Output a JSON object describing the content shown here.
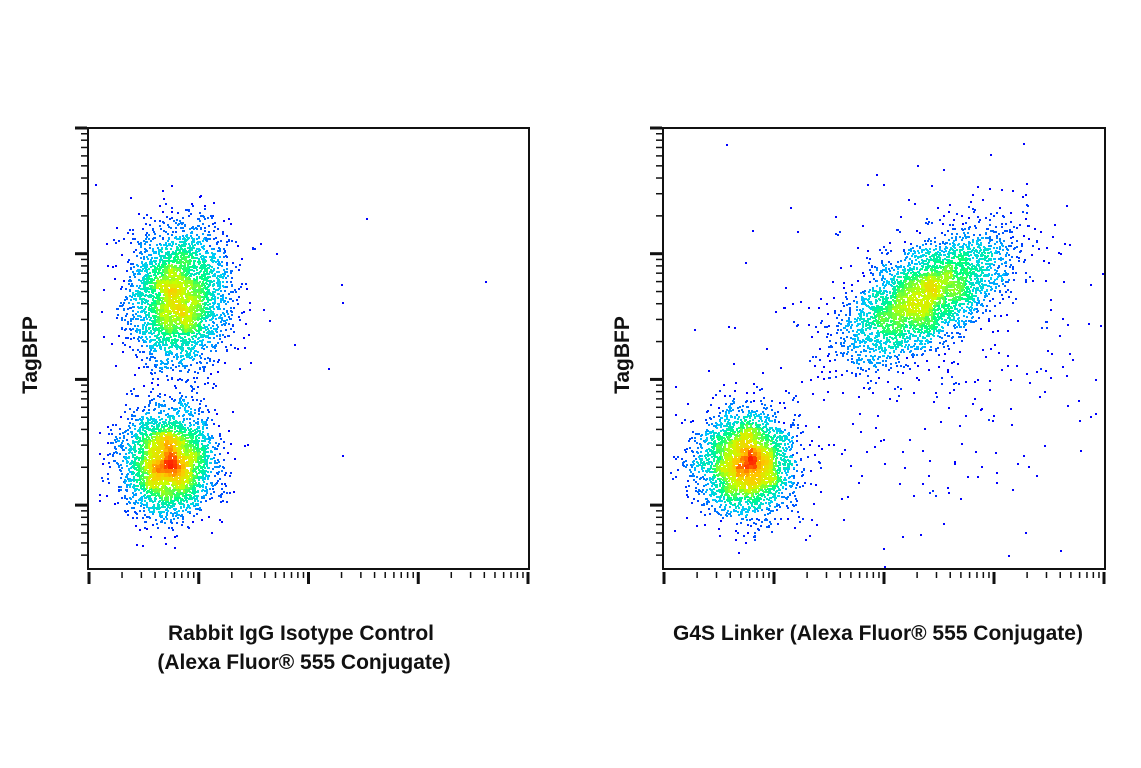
{
  "chart_data": [
    {
      "type": "scatter",
      "subtype": "flow-cytometry density dot plot",
      "xlabel_lines": [
        "Rabbit IgG Isotype Control",
        "(Alexa Fluor® 555 Conjugate)"
      ],
      "ylabel": "TagBFP",
      "x_scale": "log",
      "y_scale": "log",
      "xlim": [
        100,
        1000000
      ],
      "ylim": [
        31.6,
        100000
      ],
      "tick_labels_shown": false,
      "colormap": [
        "#0000ff",
        "#00c8ff",
        "#00ff80",
        "#c8ff00",
        "#ffc800",
        "#ff2000"
      ],
      "populations": [
        {
          "center": [
            650,
            4600
          ],
          "spread_decades": [
            0.22,
            0.27
          ],
          "corr": 0.0,
          "events": 3600
        },
        {
          "center": [
            520,
            220
          ],
          "spread_decades": [
            0.2,
            0.2
          ],
          "corr": 0.0,
          "events": 3600
        },
        {
          "center": [
            3000,
            3000
          ],
          "spread_decades": [
            0.9,
            0.6
          ],
          "corr": 0.0,
          "events": 25
        }
      ]
    },
    {
      "type": "scatter",
      "subtype": "flow-cytometry density dot plot",
      "xlabel_lines": [
        "G4S Linker (Alexa Fluor® 555 Conjugate)"
      ],
      "ylabel": "TagBFP",
      "x_scale": "log",
      "y_scale": "log",
      "xlim": [
        100,
        1000000
      ],
      "ylim": [
        31.6,
        100000
      ],
      "tick_labels_shown": false,
      "colormap": [
        "#0000ff",
        "#00c8ff",
        "#00ff80",
        "#c8ff00",
        "#ffc800",
        "#ff2000"
      ],
      "populations": [
        {
          "center": [
            550,
            220
          ],
          "spread_decades": [
            0.21,
            0.2
          ],
          "corr": 0.0,
          "events": 3400
        },
        {
          "center": [
            23000,
            4600
          ],
          "spread_decades": [
            0.36,
            0.25
          ],
          "corr": 0.6,
          "events": 3800
        },
        {
          "center": [
            20000,
            1200
          ],
          "spread_decades": [
            1.0,
            0.8
          ],
          "corr": 0.0,
          "events": 320
        }
      ]
    }
  ]
}
